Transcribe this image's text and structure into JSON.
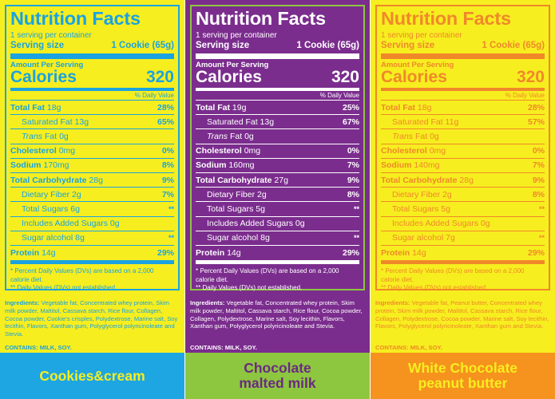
{
  "common": {
    "title": "Nutrition Facts",
    "servings_per_container": "1 serving per container",
    "serving_size_label": "Serving size",
    "serving_size_value": "1 Cookie (65g)",
    "amount_per_serving": "Amount Per Serving",
    "calories_label": "Calories",
    "daily_value_header": "% Daily Value",
    "footnote_1": "* Percent Daily Values (DVs) are based on a 2,000 calorie diet.",
    "footnote_2": "** Daily Values (DVs) not established.",
    "contains": "CONTAINS: MILK, SOY."
  },
  "panels": [
    {
      "flavor_line1": "Cookies&cream",
      "flavor_line2": "",
      "colors": {
        "bg": "#f7ee1f",
        "text": "#1aa3e0",
        "band": "#1ea6e2",
        "band_text": "#f7ee1f",
        "ingr": "#1aa3e0"
      },
      "calories": "320",
      "rows": {
        "total_fat": {
          "label": "Total Fat",
          "amount": "18g",
          "dv": "28%"
        },
        "saturated_fat": {
          "label": "Saturated Fat",
          "amount": "13g",
          "dv": "65%"
        },
        "trans_fat": {
          "label": "Trans",
          "label_suffix": "Fat",
          "amount": "0g"
        },
        "cholesterol": {
          "label": "Cholesterol",
          "amount": "0mg",
          "dv": "0%"
        },
        "sodium": {
          "label": "Sodium",
          "amount": "170mg",
          "dv": "8%"
        },
        "total_carb": {
          "label": "Total Carbohydrate",
          "amount": "28g",
          "dv": "9%"
        },
        "fiber": {
          "label": "Dietary Fiber",
          "amount": "2g",
          "dv": "7%"
        },
        "sugars": {
          "label": "Total Sugars",
          "amount": "6g",
          "dv": "**"
        },
        "added_sugars": {
          "label": "Includes Added Sugars",
          "amount": "0g"
        },
        "sugar_alcohol": {
          "label": "Sugar alcohol",
          "amount": "8g",
          "dv": "**"
        },
        "protein": {
          "label": "Protein",
          "amount": "14g",
          "dv": "29%"
        }
      },
      "ingredients_label": "Ingredients:",
      "ingredients": "Vegetable fat, Concentrated whey protein, Skim milk powder, Maltitol, Cassava starch, Rice flour, Collagen, Cocoa powder, Cookie's crisples, Polydextrose, Marine salt, Soy lecithin, Flavors, Xanthan gum, Polyglycerol polyricinoleate and Stevia."
    },
    {
      "flavor_line1": "Chocolate",
      "flavor_line2": "malted milk",
      "colors": {
        "bg": "#7b2d8e",
        "text": "#ffffff",
        "band": "#8dc63f",
        "band_text": "#6a2a82",
        "ingr": "#ffffff",
        "border": "#8dc63f"
      },
      "calories": "320",
      "rows": {
        "total_fat": {
          "label": "Total Fat",
          "amount": "19g",
          "dv": "25%"
        },
        "saturated_fat": {
          "label": "Saturated Fat",
          "amount": "13g",
          "dv": "67%"
        },
        "trans_fat": {
          "label": "Trans",
          "label_suffix": "Fat",
          "amount": "0g"
        },
        "cholesterol": {
          "label": "Cholesterol",
          "amount": "0mg",
          "dv": "0%"
        },
        "sodium": {
          "label": "Sodium",
          "amount": "160mg",
          "dv": "7%"
        },
        "total_carb": {
          "label": "Total Carbohydrate",
          "amount": "27g",
          "dv": "9%"
        },
        "fiber": {
          "label": "Dietary Fiber",
          "amount": "2g",
          "dv": "8%"
        },
        "sugars": {
          "label": "Total Sugars",
          "amount": "5g",
          "dv": "**"
        },
        "added_sugars": {
          "label": "Includes Added Sugars",
          "amount": "0g"
        },
        "sugar_alcohol": {
          "label": "Sugar alcohol",
          "amount": "8g",
          "dv": "**"
        },
        "protein": {
          "label": "Protein",
          "amount": "14g",
          "dv": "29%"
        }
      },
      "ingredients_label": "Ingredients:",
      "ingredients": "Vegetable fat, Concentrated whey protein, Skim milk powder, Maltitol, Cassava starch, Rice flour, Cocoa powder, Collagen, Polydextrose, Marine salt, Soy lecithin, Flavors, Xanthan gum, Polyglycerol polyricinoleate and Stevia."
    },
    {
      "flavor_line1": "White Chocolate",
      "flavor_line2": "peanut butter",
      "colors": {
        "bg": "#f7ee1f",
        "text": "#f0882a",
        "band": "#f6921e",
        "band_text": "#f7ee1f",
        "ingr": "#f0882a"
      },
      "calories": "320",
      "rows": {
        "total_fat": {
          "label": "Total Fat",
          "amount": "18g",
          "dv": "28%"
        },
        "saturated_fat": {
          "label": "Saturated Fat",
          "amount": "11g",
          "dv": "57%"
        },
        "trans_fat": {
          "label": "Trans",
          "label_suffix": "Fat",
          "amount": "0g"
        },
        "cholesterol": {
          "label": "Cholesterol",
          "amount": "0mg",
          "dv": "0%"
        },
        "sodium": {
          "label": "Sodium",
          "amount": "140mg",
          "dv": "7%"
        },
        "total_carb": {
          "label": "Total Carbohydrate",
          "amount": "28g",
          "dv": "9%"
        },
        "fiber": {
          "label": "Dietary Fiber",
          "amount": "2g",
          "dv": "8%"
        },
        "sugars": {
          "label": "Total Sugars",
          "amount": "5g",
          "dv": "**"
        },
        "added_sugars": {
          "label": "Includes Added Sugars",
          "amount": "0g"
        },
        "sugar_alcohol": {
          "label": "Sugar alcohol",
          "amount": "7g",
          "dv": "**"
        },
        "protein": {
          "label": "Protein",
          "amount": "14g",
          "dv": "29%"
        }
      },
      "ingredients_label": "Ingredients:",
      "ingredients": "Vegetable fat, Peanut butter, Concentrated whey protein, Skim milk powder, Maltitol, Cassava starch, Rice flour, Collagen, Polydextrose, Cocoa powder, Marine salt, Soy lecithin, Flavors, Polyglycerol polyricinoleate, Xanthan gum and Stevia."
    }
  ]
}
